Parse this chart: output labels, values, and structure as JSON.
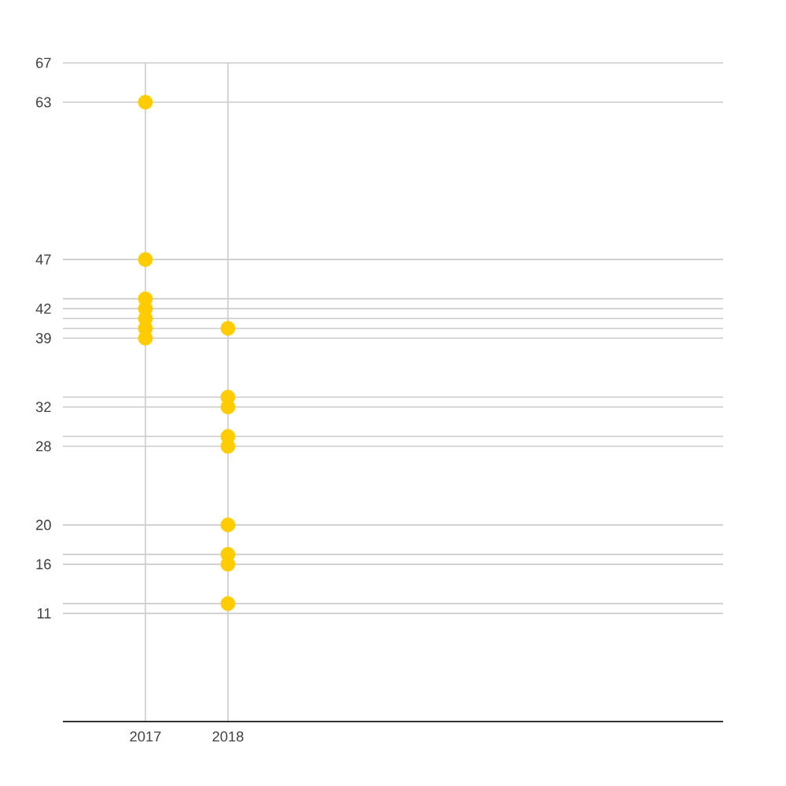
{
  "chart_data": {
    "type": "scatter",
    "series": [
      {
        "color": "#ffcc00",
        "x": [
          "2017",
          "2017",
          "2017",
          "2017",
          "2017",
          "2017",
          "2017",
          "2018",
          "2018",
          "2018",
          "2018",
          "2018",
          "2018",
          "2018",
          "2018",
          "2018"
        ],
        "values": [
          63,
          47,
          43,
          42,
          41,
          40,
          39,
          40,
          33,
          32,
          29,
          28,
          20,
          17,
          16,
          12
        ]
      }
    ],
    "xlim": [
      "2016",
      "2024"
    ],
    "xticks": [
      "2017",
      "2018"
    ],
    "ylim": [
      0,
      67
    ],
    "yticks": [
      67,
      63,
      47,
      {
        "value": 43,
        "label": null
      },
      42,
      {
        "value": 41,
        "label": null
      },
      {
        "value": 40,
        "label": null
      },
      39,
      {
        "value": 33,
        "label": null
      },
      32,
      {
        "value": 29,
        "label": null
      },
      28,
      20,
      {
        "value": 17,
        "label": null
      },
      16,
      {
        "value": 12,
        "label": null
      },
      11
    ],
    "grid": true,
    "marker": "circle"
  }
}
